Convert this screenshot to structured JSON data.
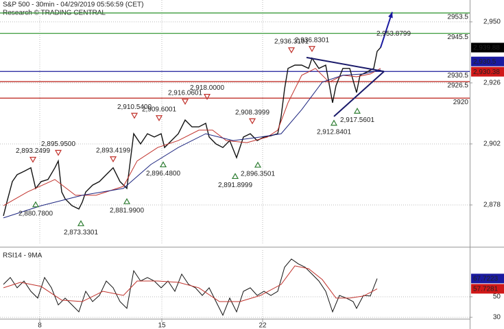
{
  "chart_data": [
    {
      "type": "line",
      "title": "S&P 500 - 30min - 04/29/2019 05:56:59 (CET)",
      "subtitle": "Research © TRADING CENTRAL",
      "xlim": [
        0,
        171.25
      ],
      "xticks": [
        {
          "value": 14.5,
          "label": "8"
        },
        {
          "value": 59,
          "label": "15"
        },
        {
          "value": 95.75,
          "label": "22"
        }
      ],
      "ylim": [
        2862.9,
        2958.6
      ],
      "yticks": [
        {
          "value": 2878,
          "label": "2,878"
        },
        {
          "value": 2902,
          "label": "2,902"
        },
        {
          "value": 2926,
          "label": "2,926"
        },
        {
          "value": 2950,
          "label": "2,950"
        }
      ],
      "grid": true,
      "series": [
        {
          "color": "#111111",
          "width": 1.4,
          "x": [
            1.25,
            2.5,
            4.5,
            6.25,
            8.75,
            11.25,
            13,
            15,
            17.5,
            20,
            21.25,
            22.5,
            23.75,
            26.25,
            28.75,
            30,
            31.25,
            33.75,
            36.25,
            38.75,
            41.25,
            43.75,
            46.25,
            48.75,
            51.25,
            53.75,
            56.25,
            58.75,
            60,
            62.5,
            65,
            67.5,
            70,
            72.5,
            75,
            76.25,
            78.75,
            81.25,
            83.75,
            86.25,
            88.75,
            91.25,
            93.75,
            96.25,
            98.75,
            101.25,
            102.5,
            103.75,
            105,
            107.5,
            110,
            112.5,
            113.75,
            116.25,
            118.75,
            121.25,
            122.5,
            125,
            127.5,
            130,
            131.25,
            133.75,
            136.25,
            137.5,
            138.75
          ],
          "values": [
            2873.7,
            2879.1,
            2887.2,
            2889.9,
            2891.2,
            2892.6,
            2884.5,
            2887.2,
            2888.0,
            2892.6,
            2895.3,
            2883.1,
            2880.4,
            2877.7,
            2876.4,
            2879.1,
            2883.1,
            2885.8,
            2887.2,
            2889.9,
            2892.6,
            2887.2,
            2884.5,
            2906.0,
            2902.0,
            2906.0,
            2904.7,
            2906.0,
            2900.6,
            2903.3,
            2906.0,
            2911.4,
            2908.7,
            2908.7,
            2910.1,
            2904.7,
            2902.0,
            2900.6,
            2903.3,
            2896.6,
            2904.7,
            2906.0,
            2903.3,
            2904.7,
            2905.2,
            2906.0,
            2912.8,
            2923.6,
            2931.7,
            2933.0,
            2933.0,
            2931.7,
            2935.7,
            2931.7,
            2933.0,
            2918.2,
            2924.9,
            2931.7,
            2931.7,
            2922.2,
            2929.0,
            2930.3,
            2931.7,
            2938.4,
            2939.88
          ]
        },
        {
          "color": "#c0302a",
          "width": 1,
          "x": [
            1.25,
            10,
            20,
            27.5,
            35,
            45,
            50,
            57.5,
            65,
            72.5,
            77.5,
            82.5,
            90,
            97.5,
            101.25,
            105,
            110,
            115,
            120,
            125,
            130,
            135,
            138.75
          ],
          "values": [
            2877.7,
            2883.1,
            2888.0,
            2881.8,
            2881.8,
            2885.3,
            2895.3,
            2900.6,
            2903.3,
            2907.4,
            2907.4,
            2903.3,
            2902.5,
            2904.7,
            2907.4,
            2918.2,
            2929.0,
            2931.7,
            2926.3,
            2929.0,
            2928.4,
            2929.5,
            2931.7
          ]
        },
        {
          "color": "#1a237e",
          "width": 1,
          "x": [
            1.25,
            15,
            30,
            45,
            55,
            65,
            75,
            85,
            95,
            102.5,
            110,
            117.5,
            125,
            132.5,
            138.75
          ],
          "values": [
            2872.9,
            2877.7,
            2881.8,
            2884.5,
            2893.9,
            2900.6,
            2906.0,
            2903.3,
            2904.7,
            2906.0,
            2915.5,
            2926.3,
            2929.0,
            2929.5,
            2931.1
          ]
        }
      ],
      "levels": [
        {
          "value": 2953.5,
          "color": "#3a9a3a"
        },
        {
          "value": 2945.5,
          "color": "#3a9a3a"
        },
        {
          "value": 2930.5,
          "color": "#1a1a9a"
        },
        {
          "value": 2926.5,
          "color": "#c0302a"
        },
        {
          "value": 2920,
          "color": "#c0302a"
        }
      ],
      "price_tags": [
        {
          "value": 2939.88,
          "label": "2,939.88",
          "color": "#000000"
        },
        {
          "value": 2930.5,
          "label": "2,930.5",
          "color": "#1a1aa0"
        },
        {
          "value": 2930.38,
          "label": "2,930.38",
          "color": "#d01818"
        }
      ],
      "annotations": [
        {
          "x": 12,
          "value": 2893.2499,
          "label": "2,893.2499",
          "marker": "down"
        },
        {
          "x": 21.25,
          "value": 2895.95,
          "label": "2,895.9500",
          "marker": "down"
        },
        {
          "x": 13,
          "value": 2880.78,
          "label": "2,880.7800",
          "marker": "up"
        },
        {
          "x": 29.5,
          "value": 2873.3301,
          "label": "2,873.3301",
          "marker": "up"
        },
        {
          "x": 41.25,
          "value": 2893.4199,
          "label": "2,893.4199",
          "marker": "down"
        },
        {
          "x": 46.25,
          "value": 2881.99,
          "label": "2,881.9900",
          "marker": "up"
        },
        {
          "x": 49,
          "value": 2910.54,
          "label": "2,910.5400",
          "marker": "down"
        },
        {
          "x": 58,
          "value": 2909.6001,
          "label": "2,909.6001",
          "marker": "down"
        },
        {
          "x": 59.5,
          "value": 2896.48,
          "label": "2,896.4800",
          "marker": "up"
        },
        {
          "x": 67.5,
          "value": 2916.0601,
          "label": "2,916.0601",
          "marker": "down"
        },
        {
          "x": 75.5,
          "value": 2918.0,
          "label": "2,918.0000",
          "marker": "down"
        },
        {
          "x": 85.75,
          "value": 2891.8999,
          "label": "2,891.8999",
          "marker": "up"
        },
        {
          "x": 94,
          "value": 2896.3501,
          "label": "2,896.3501",
          "marker": "up"
        },
        {
          "x": 92,
          "value": 2908.3999,
          "label": "2,908.3999",
          "marker": "down"
        },
        {
          "x": 106.25,
          "value": 2936.3101,
          "label": "2,936.3101",
          "marker": "down"
        },
        {
          "x": 113.75,
          "value": 2936.8301,
          "label": "2,936.8301",
          "marker": "down"
        },
        {
          "x": 121.75,
          "value": 2912.8401,
          "label": "2,912.8401",
          "marker": "up"
        },
        {
          "x": 130.25,
          "value": 2917.5601,
          "label": "2,917.5601",
          "marker": "up"
        }
      ],
      "trendlines": [
        {
          "color": "#1a1a6a",
          "x": [
            111.75,
            140
          ],
          "values": [
            2936.0,
            2930.5
          ]
        },
        {
          "color": "#1a1a6a",
          "x": [
            121.75,
            140
          ],
          "values": [
            2912.8,
            2930.5
          ]
        }
      ],
      "target": {
        "color": "#1a1aa0",
        "x": [
          138.75,
          143
        ],
        "values": [
          2939.88,
          2953.8799
        ],
        "label": "2,953.8799"
      }
    },
    {
      "type": "line",
      "title": "RSI14 - 9MA",
      "xlim": [
        0,
        171.25
      ],
      "ylim": [
        25.3,
        95.3
      ],
      "yticks": [
        30,
        50
      ],
      "grid": true,
      "series": [
        {
          "color": "#111111",
          "width": 1,
          "x": [
            1.25,
            3.75,
            6.25,
            8.75,
            11.25,
            13.75,
            16.25,
            18.75,
            21.25,
            23.75,
            26.25,
            28.75,
            31.25,
            33.75,
            36.25,
            38.75,
            41.25,
            43.75,
            46.25,
            48.75,
            51.25,
            53.75,
            56.25,
            58.75,
            61.25,
            63.75,
            66.25,
            68.75,
            71.25,
            73.75,
            76.25,
            78.75,
            81.25,
            83.75,
            86.25,
            88.75,
            91.25,
            93.75,
            96.25,
            98.75,
            101.25,
            103.75,
            106.25,
            108.75,
            111.25,
            113.75,
            116.25,
            118.75,
            121.25,
            123.75,
            126.25,
            128.75,
            130,
            132.5,
            135,
            137.5
          ],
          "values": [
            62,
            68.7,
            58.7,
            65.3,
            55.3,
            48.7,
            68.7,
            58.7,
            42,
            48.7,
            42,
            35.3,
            55.3,
            45.3,
            51.3,
            65.3,
            58.7,
            45.3,
            38.7,
            75.3,
            65.3,
            68.7,
            65.3,
            58.7,
            65.3,
            55.3,
            72,
            62,
            58.7,
            51.3,
            58.7,
            45.3,
            32,
            48.7,
            35.3,
            55.3,
            58.7,
            51.3,
            55.3,
            51.3,
            55.3,
            78.7,
            86.7,
            82,
            78.7,
            72,
            65.3,
            55.3,
            35.3,
            51.3,
            48.7,
            45.3,
            38.7,
            51.3,
            50.7,
            67.7223
          ]
        },
        {
          "color": "#c0302a",
          "width": 1,
          "x": [
            1.25,
            7.5,
            15,
            22.5,
            30,
            37.5,
            45,
            50,
            57.5,
            65,
            72.5,
            80,
            87.5,
            95,
            102.5,
            107.5,
            112.5,
            117.5,
            122.5,
            127.5,
            132.5,
            137.5
          ],
          "values": [
            58.7,
            64,
            60,
            46.7,
            45.3,
            55.3,
            51.3,
            65.3,
            65.3,
            64,
            58.7,
            45.3,
            45.3,
            51.3,
            62,
            80,
            77.3,
            66.7,
            48.7,
            48.7,
            50.7,
            57.7281
          ]
        }
      ],
      "price_tags": [
        {
          "value": 67.7223,
          "label": "67.7223",
          "color": "#1a1aa0"
        },
        {
          "value": 57.7281,
          "label": "57.7281",
          "color": "#d01818"
        }
      ]
    }
  ]
}
